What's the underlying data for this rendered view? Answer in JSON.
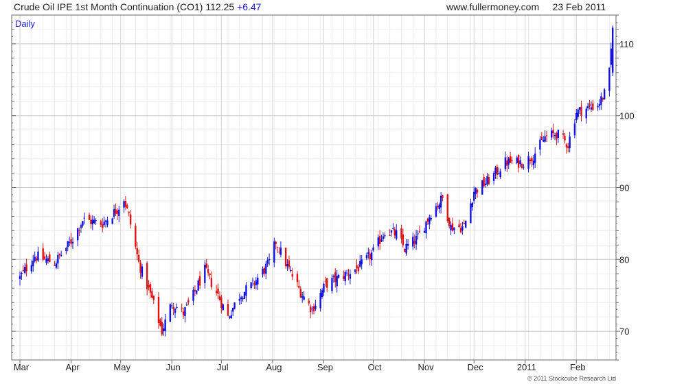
{
  "header": {
    "title": "Crude Oil IPE 1st Month Continuation (CO1)",
    "last_price": "112.25",
    "change": "+6.47",
    "site": "www.fullermoney.com",
    "date": "23 Feb 2011"
  },
  "period_label": "Daily",
  "copyright": "© 2011 Stockcube Research Ltd",
  "colors": {
    "up": "#1010e0",
    "down": "#e01010",
    "grid": "#dcdcdc",
    "axis": "#666666"
  },
  "chart_data": {
    "type": "candlestick",
    "title": "Crude Oil IPE 1st Month Continuation (CO1)",
    "x_labels": [
      "Mar",
      "Apr",
      "May",
      "Jun",
      "Jul",
      "Aug",
      "Sep",
      "Oct",
      "Nov",
      "Dec",
      "2011",
      "Feb"
    ],
    "y_ticks": [
      70,
      80,
      90,
      100,
      110
    ],
    "ylim": [
      66,
      114
    ],
    "grid": true,
    "y_axis_side": "right",
    "close_path": [
      [
        "2010-03-01",
        77.5
      ],
      [
        "2010-03-10",
        80.5
      ],
      [
        "2010-03-22",
        79.5
      ],
      [
        "2010-04-01",
        82.5
      ],
      [
        "2010-04-08",
        85.5
      ],
      [
        "2010-04-20",
        85.0
      ],
      [
        "2010-04-29",
        87.0
      ],
      [
        "2010-05-03",
        88.5
      ],
      [
        "2010-05-06",
        86.0
      ],
      [
        "2010-05-12",
        79.5
      ],
      [
        "2010-05-20",
        74.5
      ],
      [
        "2010-05-26",
        70.0
      ],
      [
        "2010-06-01",
        74.0
      ],
      [
        "2010-06-08",
        72.5
      ],
      [
        "2010-06-14",
        75.0
      ],
      [
        "2010-06-21",
        78.5
      ],
      [
        "2010-06-29",
        75.0
      ],
      [
        "2010-07-05",
        72.0
      ],
      [
        "2010-07-12",
        75.0
      ],
      [
        "2010-07-20",
        76.5
      ],
      [
        "2010-07-30",
        79.5
      ],
      [
        "2010-08-03",
        82.5
      ],
      [
        "2010-08-10",
        79.0
      ],
      [
        "2010-08-18",
        75.5
      ],
      [
        "2010-08-25",
        73.0
      ],
      [
        "2010-09-02",
        76.5
      ],
      [
        "2010-09-15",
        78.0
      ],
      [
        "2010-09-23",
        79.0
      ],
      [
        "2010-10-01",
        81.0
      ],
      [
        "2010-10-08",
        84.0
      ],
      [
        "2010-10-15",
        83.5
      ],
      [
        "2010-10-20",
        81.5
      ],
      [
        "2010-10-28",
        83.0
      ],
      [
        "2010-11-05",
        86.5
      ],
      [
        "2010-11-12",
        88.5
      ],
      [
        "2010-11-17",
        84.5
      ],
      [
        "2010-11-25",
        84.5
      ],
      [
        "2010-12-01",
        89.5
      ],
      [
        "2010-12-10",
        91.0
      ],
      [
        "2010-12-20",
        93.5
      ],
      [
        "2010-12-31",
        93.5
      ],
      [
        "2011-01-06",
        94.5
      ],
      [
        "2011-01-13",
        97.0
      ],
      [
        "2011-01-20",
        97.5
      ],
      [
        "2011-01-27",
        96.0
      ],
      [
        "2011-02-01",
        100.5
      ],
      [
        "2011-02-07",
        101.0
      ],
      [
        "2011-02-14",
        101.5
      ],
      [
        "2011-02-18",
        103.0
      ],
      [
        "2011-02-21",
        106.0
      ],
      [
        "2011-02-23",
        112.25
      ]
    ]
  }
}
